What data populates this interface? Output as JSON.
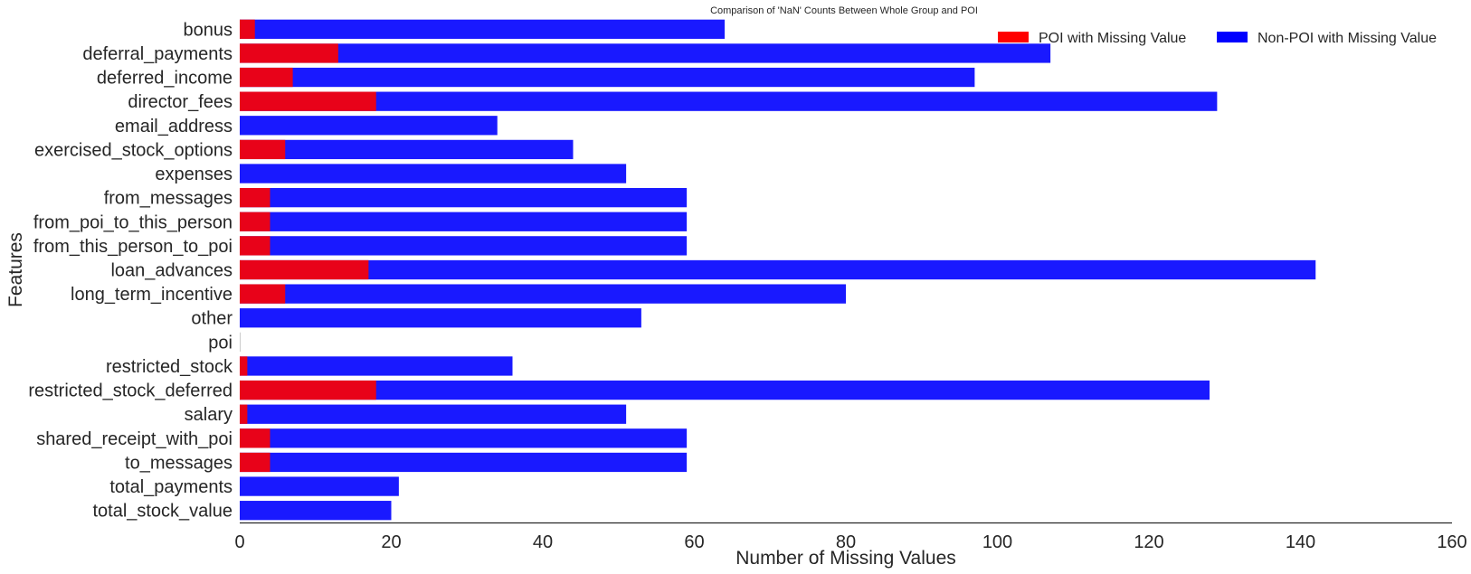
{
  "chart_data": {
    "type": "bar",
    "orientation": "horizontal",
    "stacking": "overlay",
    "title": "Comparison of 'NaN' Counts Between Whole Group and POI",
    "xlabel": "Number of Missing Values",
    "ylabel": "Features",
    "xlim": [
      0,
      160
    ],
    "xticks": [
      0,
      20,
      40,
      60,
      80,
      100,
      120,
      140,
      160
    ],
    "grid": false,
    "legend_position": "top-right",
    "categories": [
      "bonus",
      "deferral_payments",
      "deferred_income",
      "director_fees",
      "email_address",
      "exercised_stock_options",
      "expenses",
      "from_messages",
      "from_poi_to_this_person",
      "from_this_person_to_poi",
      "loan_advances",
      "long_term_incentive",
      "other",
      "poi",
      "restricted_stock",
      "restricted_stock_deferred",
      "salary",
      "shared_receipt_with_poi",
      "to_messages",
      "total_payments",
      "total_stock_value"
    ],
    "series": [
      {
        "name": "Non-POI with Missing Value",
        "color": "#0000ff",
        "values": [
          64,
          107,
          97,
          129,
          34,
          44,
          51,
          59,
          59,
          59,
          142,
          80,
          53,
          0,
          36,
          128,
          51,
          59,
          59,
          21,
          20
        ]
      },
      {
        "name": "POI with Missing Value",
        "color": "#ff0000",
        "values": [
          2,
          13,
          7,
          18,
          0,
          6,
          0,
          4,
          4,
          4,
          17,
          6,
          0,
          0,
          1,
          18,
          1,
          4,
          4,
          0,
          0
        ]
      }
    ]
  }
}
